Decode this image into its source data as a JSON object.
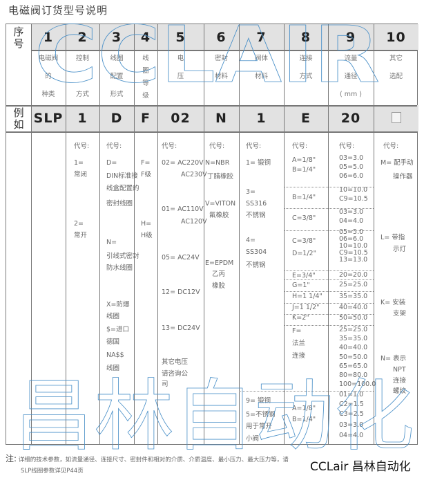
{
  "title": "电磁阀订货型号说明",
  "header": {
    "label": "序号",
    "numbers": [
      "1",
      "2",
      "3",
      "4",
      "5",
      "6",
      "7",
      "8",
      "9",
      "10"
    ],
    "descriptions": [
      [
        "电磁阀",
        "的",
        "种类"
      ],
      [
        "控制",
        "",
        "方式"
      ],
      [
        "线圈",
        "配置",
        "形式"
      ],
      [
        "线",
        "圈",
        "等",
        "级"
      ],
      [
        "电",
        "压"
      ],
      [
        "密封",
        "材料"
      ],
      [
        "阀体",
        "材料"
      ],
      [
        "连接",
        "方式"
      ],
      [
        "流量",
        "通径",
        "( mm )"
      ],
      [
        "其它",
        "选配"
      ]
    ]
  },
  "example": {
    "label": "例如",
    "values": [
      "SLP",
      "1",
      "D",
      "F",
      "02",
      "N",
      "1",
      "E",
      "20",
      ""
    ],
    "last_is_checkbox": true
  },
  "body": {
    "columns": [
      {
        "lines": [
          "代号:",
          "1=",
          "常闭",
          "2=",
          "常开"
        ]
      },
      {
        "lines": [
          "代号:",
          "D=",
          "DIN标准接",
          "线盒配置的",
          "密封线圈",
          "N=",
          "引线式密封",
          "防水线圈",
          "X=防爆",
          "线圈",
          "$=进口",
          "德国",
          "NA$$",
          "线圈"
        ]
      },
      {
        "lines": [
          "F=",
          "F级",
          "H=",
          "H级"
        ]
      },
      {
        "lines": [
          "代号:",
          "02= AC220V",
          "AC230V",
          "01= AC110V",
          "AC120V",
          "05= AC24V",
          "12= DC12V",
          "13= DC24V",
          "其它电压",
          "请咨询公",
          "司"
        ]
      },
      {
        "lines": [
          "代号:",
          "N=NBR",
          "丁腈橡胶",
          "V=VITON",
          "氟橡胶",
          "E=EPDM",
          "乙丙",
          "橡胶"
        ]
      },
      {
        "lines": [
          "代号:",
          "1= 锻铜",
          "3=",
          "SS316",
          "不锈钢",
          "4=",
          "SS304",
          "不锈钢",
          "9= 锻铜",
          "5=不锈钢",
          "用于常开",
          "小阀"
        ]
      },
      {
        "lines": [
          "代号:",
          "A=1/8\"",
          "B=1/4\"",
          "B=1/4\"",
          "C=3/8\"",
          "C=3/8\"",
          "D=1/2\"",
          "E=3/4\"",
          "G=1\"",
          "H=1 1/4\"",
          "J=1 1/2\"",
          "K=2\"",
          "F=",
          "法兰",
          "连接",
          "A=1/8\"",
          "B=1/4\""
        ]
      },
      {
        "lines": [
          "代号:",
          "03=3.0",
          "05=5.0",
          "06=6.0",
          "10=10.0",
          "C9=10.5",
          "03=3.0",
          "04=4.0",
          "05=5.0",
          "06=6.0",
          "10=10.0",
          "C9=10.5",
          "13=13.0",
          "20=20.0",
          "25=25.0",
          "35=35.0",
          "40=40.0",
          "50=50.0",
          "25=25.0",
          "35=35.0",
          "40=40.0",
          "50=50.0",
          "65=65.0",
          "80=80.0",
          "100=100.0",
          "01=1.0",
          "C2=1.5",
          "C3=2.5",
          "03=3.0",
          "04=4.0"
        ]
      },
      {
        "lines": [
          "代号:",
          "M= 配手动",
          "操作器",
          "L=  带指",
          "示灯",
          "K=  安装",
          "支架",
          "N=  表示",
          "NPT",
          "连接",
          "螺纹"
        ]
      }
    ]
  },
  "notes": {
    "line1_prefix": "注:",
    "line1": "详细的技术参数，如流量通径、连接尺寸、密封件和相对的介质、介质温度、最小压力、最大压力等，请",
    "line2": "SLP线圈参数详见P44页"
  },
  "watermarks": {
    "top": "CCLAIR",
    "bottom": "昌林自动化",
    "brand": "CCLair 昌林自动化",
    "color": "#4a90c8"
  }
}
